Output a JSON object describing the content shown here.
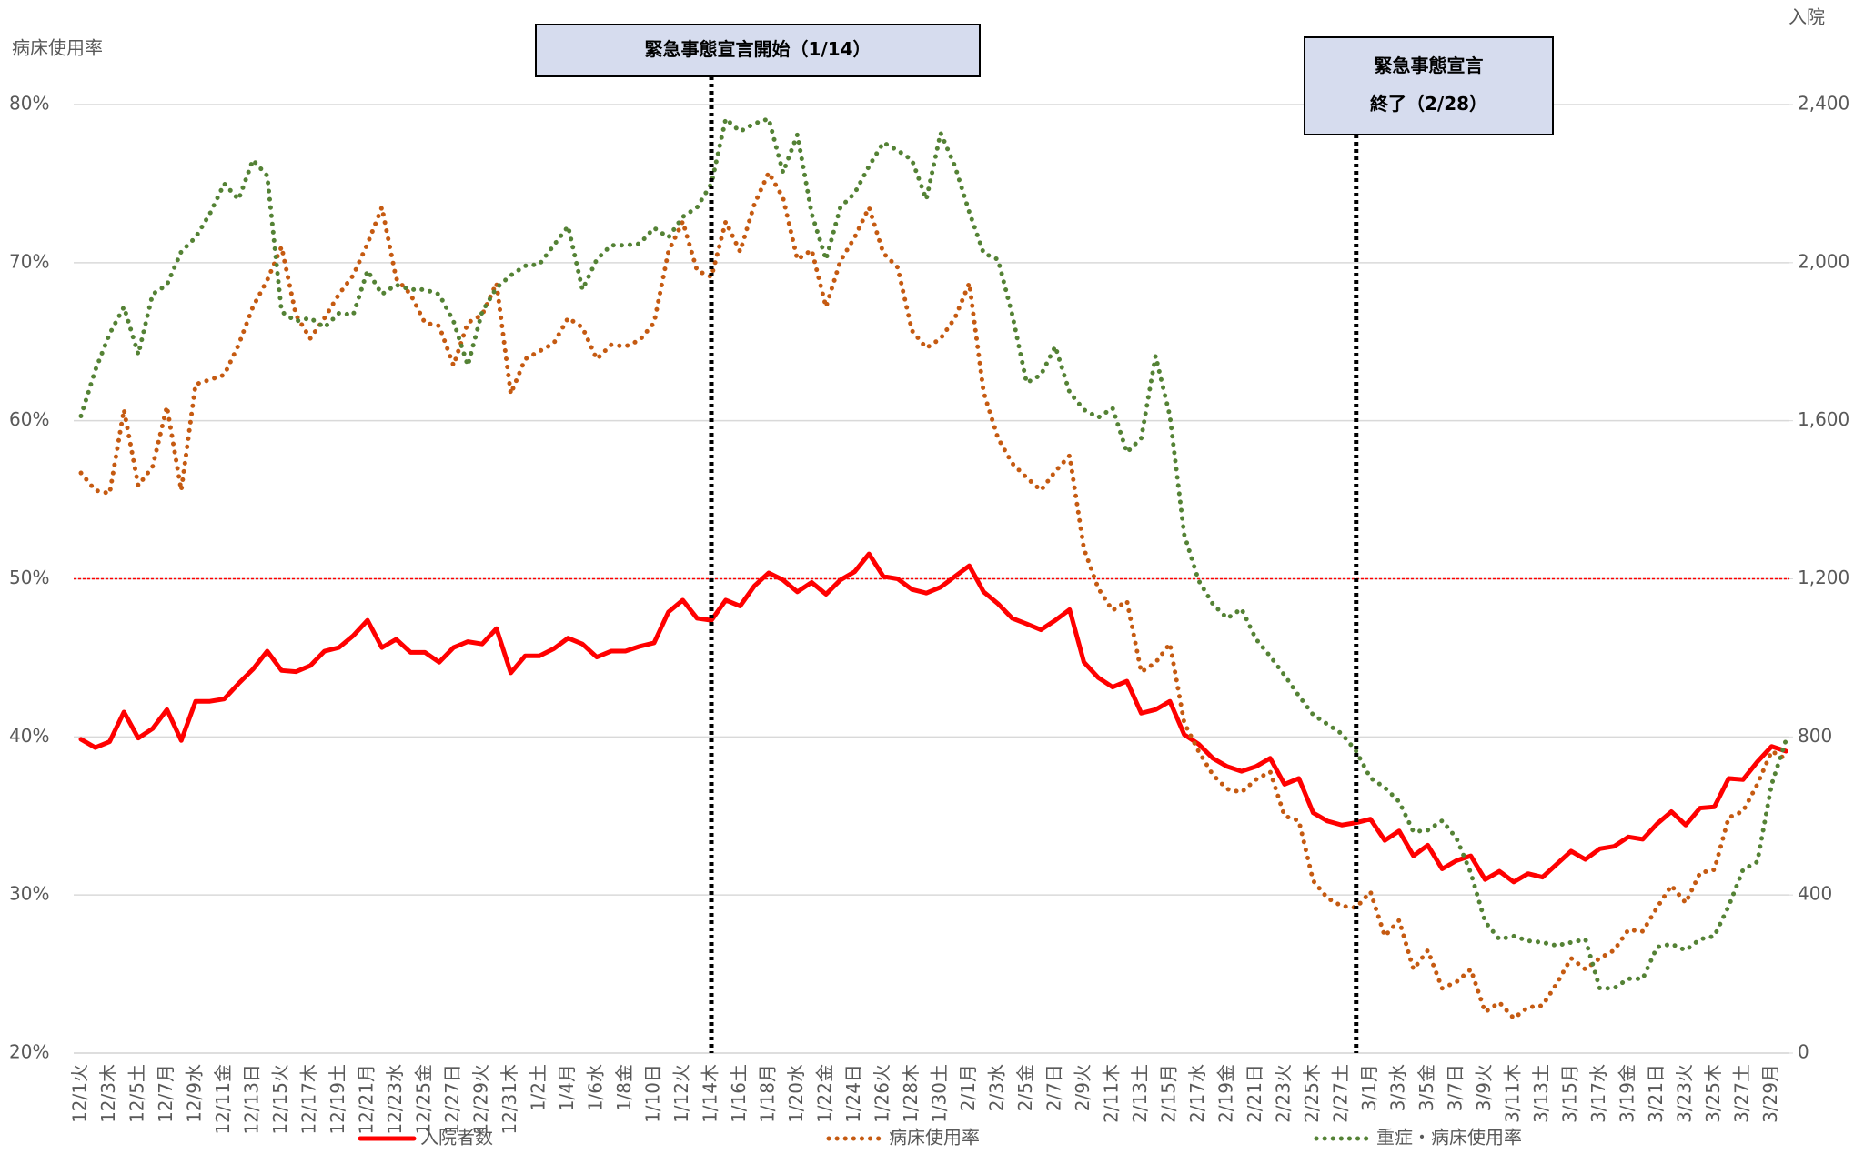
{
  "chart_data": {
    "type": "line",
    "y_label": "病床使用率",
    "y2_label": "入院",
    "categories": [
      "12/1火",
      null,
      "12/3木",
      null,
      "12/5土",
      null,
      "12/7月",
      null,
      "12/9水",
      null,
      "12/11金",
      null,
      "12/13日",
      null,
      "12/15火",
      null,
      "12/17木",
      null,
      "12/19土",
      null,
      "12/21月",
      null,
      "12/23水",
      null,
      "12/25金",
      null,
      "12/27日",
      null,
      "12/29火",
      null,
      "12/31木",
      null,
      "1/2土",
      null,
      "1/4月",
      null,
      "1/6水",
      null,
      "1/8金",
      null,
      "1/10日",
      null,
      "1/12火",
      null,
      "1/14木",
      null,
      "1/16土",
      null,
      "1/18月",
      null,
      "1/20水",
      null,
      "1/22金",
      null,
      "1/24日",
      null,
      "1/26火",
      null,
      "1/28木",
      null,
      "1/30土",
      null,
      "2/1月",
      null,
      "2/3水",
      null,
      "2/5金",
      null,
      "2/7日",
      null,
      "2/9火",
      null,
      "2/11木",
      null,
      "2/13土",
      null,
      "2/15月",
      null,
      "2/17水",
      null,
      "2/19金",
      null,
      "2/21日",
      null,
      "2/23火",
      null,
      "2/25木",
      null,
      "2/27土",
      null,
      "3/1月",
      null,
      "3/3水",
      null,
      "3/5金",
      null,
      "3/7日",
      null,
      "3/9火",
      null,
      "3/11木",
      null,
      "3/13土",
      null,
      "3/15月",
      null,
      "3/17水",
      null,
      "3/19金",
      null,
      "3/21日",
      null,
      "3/23火",
      null,
      "3/25木",
      null,
      "3/27土",
      null,
      "3/29月",
      null
    ],
    "series": [
      {
        "name": "入院者数",
        "color": "#ff0000",
        "dash": "solid",
        "axis": "y2",
        "values": [
          794,
          773,
          788,
          863,
          797,
          821,
          869,
          791,
          890,
          890,
          896,
          935,
          971,
          1017,
          968,
          965,
          980,
          1017,
          1026,
          1056,
          1095,
          1026,
          1047,
          1014,
          1014,
          989,
          1026,
          1041,
          1035,
          1074,
          962,
          1005,
          1005,
          1023,
          1050,
          1035,
          1002,
          1017,
          1017,
          1029,
          1038,
          1116,
          1146,
          1100,
          1095,
          1146,
          1131,
          1182,
          1215,
          1197,
          1167,
          1191,
          1161,
          1197,
          1218,
          1263,
          1206,
          1200,
          1173,
          1164,
          1179,
          1206,
          1233,
          1167,
          1137,
          1100,
          1086,
          1071,
          1095,
          1122,
          989,
          950,
          926,
          941,
          860,
          869,
          890,
          806,
          782,
          746,
          725,
          713,
          725,
          746,
          680,
          695,
          608,
          587,
          577,
          583,
          592,
          538,
          562,
          499,
          526,
          466,
          487,
          499,
          439,
          460,
          433,
          454,
          445,
          478,
          511,
          490,
          517,
          523,
          547,
          541,
          580,
          611,
          577,
          620,
          623,
          695,
          692,
          737,
          776,
          764
        ]
      },
      {
        "name": "病床使用率",
        "color": "#c55a11",
        "dash": "dotted",
        "values": [
          56.7,
          55.6,
          55.4,
          60.7,
          55.9,
          57.1,
          60.9,
          55.6,
          62.3,
          62.6,
          62.9,
          64.8,
          67.2,
          68.9,
          71.0,
          66.7,
          65.2,
          66.5,
          68.0,
          69.2,
          71.2,
          73.5,
          69.0,
          68.0,
          66.2,
          66.0,
          63.5,
          66.2,
          66.7,
          68.7,
          61.7,
          63.9,
          64.4,
          64.9,
          66.5,
          65.9,
          63.9,
          64.8,
          64.7,
          65.1,
          66.2,
          70.7,
          72.6,
          69.5,
          69.1,
          72.6,
          70.7,
          73.7,
          75.7,
          74.1,
          70.2,
          70.8,
          67.2,
          70.1,
          71.6,
          73.5,
          70.6,
          69.7,
          65.7,
          64.6,
          65.2,
          66.5,
          68.7,
          61.8,
          58.9,
          57.3,
          56.4,
          55.6,
          56.8,
          57.8,
          51.9,
          49.4,
          48.0,
          48.6,
          44.1,
          44.7,
          45.9,
          40.9,
          39.1,
          37.6,
          36.7,
          36.5,
          37.3,
          37.8,
          35.0,
          34.7,
          30.9,
          29.8,
          29.3,
          29.2,
          30.2,
          27.4,
          28.4,
          25.3,
          26.5,
          24.1,
          24.5,
          25.3,
          22.6,
          23.2,
          22.2,
          22.9,
          23.0,
          24.4,
          26.0,
          25.3,
          26.0,
          26.5,
          27.8,
          27.7,
          29.2,
          30.6,
          29.5,
          31.4,
          31.6,
          34.9,
          35.3,
          37.0,
          39.1,
          38.6
        ]
      },
      {
        "name": "重症・病床使用率",
        "color": "#548235",
        "dash": "dotted",
        "values": [
          60.3,
          63.2,
          65.5,
          67.2,
          64.2,
          68.0,
          68.6,
          70.7,
          71.6,
          73.1,
          75.0,
          74.0,
          76.5,
          75.5,
          66.9,
          66.3,
          66.5,
          65.9,
          66.8,
          66.7,
          69.5,
          68.0,
          68.6,
          68.3,
          68.3,
          68.0,
          66.3,
          63.5,
          66.9,
          68.4,
          69.2,
          69.8,
          69.9,
          71.1,
          72.3,
          68.3,
          70.2,
          71.1,
          71.1,
          71.2,
          72.2,
          71.6,
          72.9,
          73.5,
          75.0,
          79.1,
          78.3,
          78.8,
          79.1,
          75.7,
          78.1,
          73.1,
          70.2,
          73.5,
          74.4,
          76.1,
          77.6,
          77.1,
          76.5,
          74.0,
          78.2,
          76.1,
          73.2,
          70.6,
          70.2,
          66.7,
          62.4,
          62.9,
          64.7,
          61.8,
          60.7,
          60.2,
          60.8,
          58.0,
          58.9,
          64.1,
          60.3,
          52.8,
          49.9,
          48.4,
          47.5,
          48.1,
          46.2,
          45.1,
          43.9,
          42.6,
          41.4,
          40.8,
          40.2,
          39.1,
          37.4,
          36.8,
          35.9,
          34.0,
          34.1,
          34.7,
          33.6,
          31.4,
          28.3,
          27.2,
          27.4,
          27.1,
          27.0,
          26.8,
          27.0,
          27.2,
          24.1,
          24.1,
          24.7,
          24.7,
          26.7,
          26.9,
          26.5,
          27.2,
          27.4,
          29.3,
          31.6,
          32.1,
          37.0,
          39.8
        ]
      }
    ],
    "ylim": [
      20,
      80
    ],
    "yticks": [
      {
        "value": 20,
        "label": "20%"
      },
      {
        "value": 30,
        "label": "30%"
      },
      {
        "value": 40,
        "label": "40%"
      },
      {
        "value": 50,
        "label": "50%"
      },
      {
        "value": 60,
        "label": "60%"
      },
      {
        "value": 70,
        "label": "70%"
      },
      {
        "value": 80,
        "label": "80%"
      }
    ],
    "y2lim": [
      0,
      2400
    ],
    "y2ticks": [
      0,
      400,
      800,
      {
        "value": 1200,
        "label": "1,200"
      },
      {
        "value": 1600,
        "label": "1,600"
      },
      {
        "value": 2000,
        "label": "2,000"
      },
      {
        "value": 2400,
        "label": "2,400"
      }
    ],
    "grid": true,
    "reference_line": {
      "value": 50,
      "color": "#ff0000"
    },
    "annotations": [
      {
        "text": [
          "緊急事態宣言開始（1/14）"
        ],
        "x": 44
      },
      {
        "text": [
          "緊急事態宣言",
          "終了（2/28）"
        ],
        "x": 89
      }
    ],
    "legend": "bottom"
  }
}
